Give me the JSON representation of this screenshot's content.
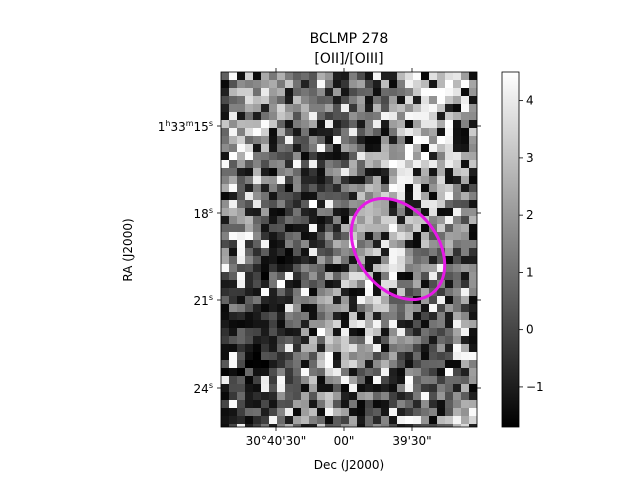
{
  "chart_data": {
    "type": "heatmap",
    "title": "BCLMP 278",
    "subtitle": "[OII]/[OIII]",
    "xlabel": "Dec (J2000)",
    "ylabel": "RA (J2000)",
    "colormap": "gray",
    "x_tick_labels": [
      "30°40'30\"",
      "00\"",
      "39'30\""
    ],
    "y_tick_labels": [
      {
        "base": "1",
        "h": "h",
        "m_val": "33",
        "m": "m",
        "s_val": "15",
        "s": "s"
      },
      {
        "base": "18",
        "s": "s"
      },
      {
        "base": "21",
        "s": "s"
      },
      {
        "base": "24",
        "s": "s"
      }
    ],
    "colorbar": {
      "min": -1.7,
      "max": 4.5,
      "ticks": [
        -1,
        0,
        1,
        2,
        3,
        4
      ],
      "tick_labels": [
        "−1",
        "0",
        "1",
        "2",
        "3",
        "4"
      ]
    },
    "annotations": [
      {
        "type": "ellipse",
        "color": "#e619e6",
        "description": "region aperture"
      }
    ],
    "grid": false
  }
}
